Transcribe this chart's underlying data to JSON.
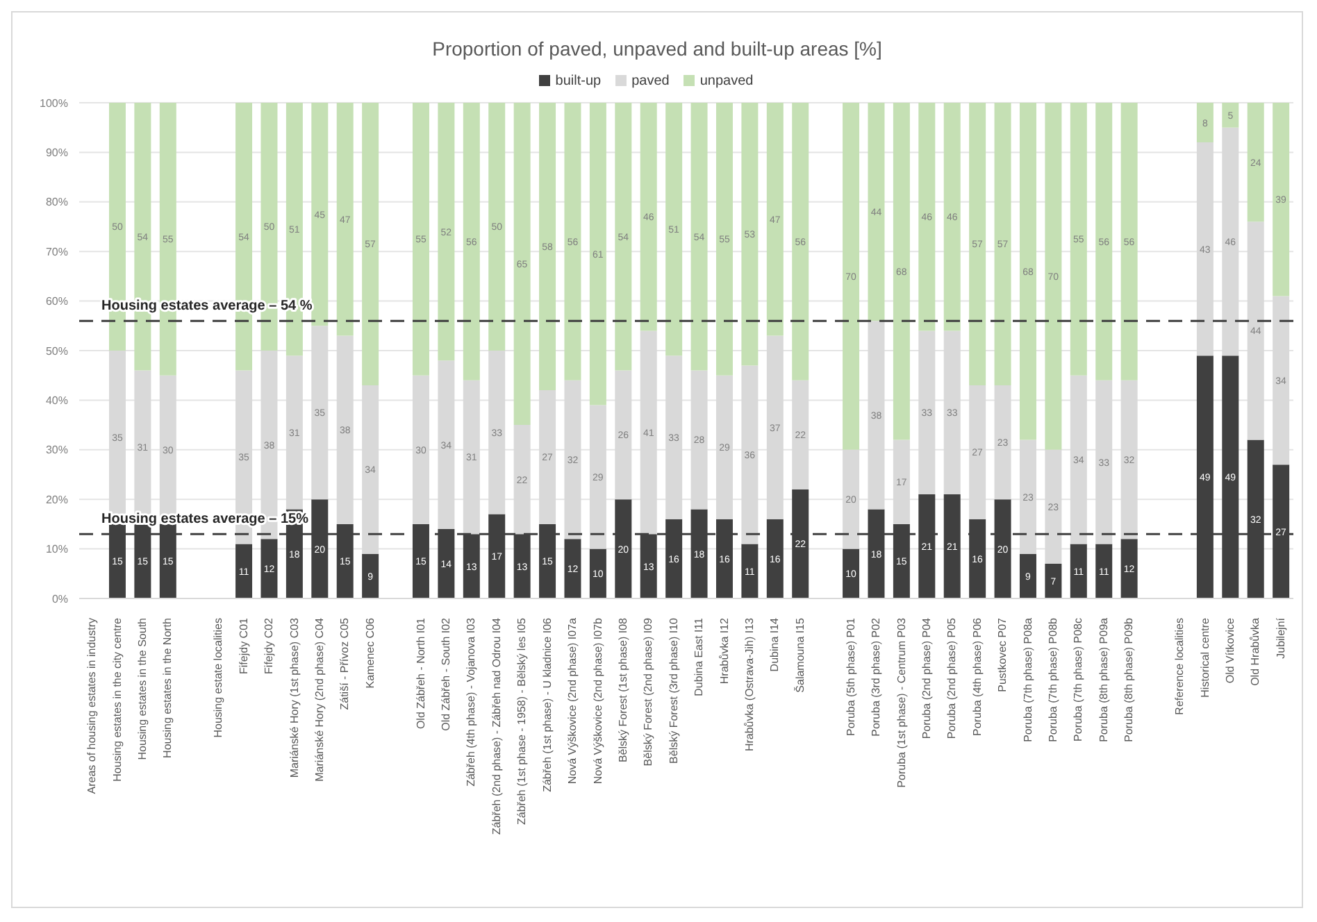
{
  "chart_data": {
    "type": "bar",
    "stacked": true,
    "title": "Proportion of paved, unpaved and built-up areas [%]",
    "categories": [
      "Areas of housing estates in industry",
      "Housing estates in the city centre",
      "Housing estates in the South",
      "Housing estates in the North",
      null,
      "Housing estate localities",
      "Fifejdy C01",
      "Fifejdy C02",
      "Mariánské Hory (1st phase) C03",
      "Mariánské Hory (2nd phase) C04",
      "Zátiší - Přívoz C05",
      "Kamenec C06",
      null,
      "Old Zábřeh - North I01",
      "Old Zábřeh - South I02",
      "Zábřeh (4th phase) - Vojanova I03",
      "Zábřeh (2nd phase) - Zábřeh nad Odrou I04",
      "Zábřeh (1st phase - 1958) - Bělský les I05",
      "Zábřeh (1st phase) - U kladnice I06",
      "Nová Výškovice (2nd phase) I07a",
      "Nová Výškovice (2nd phase) I07b",
      "Bělský Forest (1st phase) I08",
      "Bělský Forest (2nd phase) I09",
      "Bělský Forest (3rd phase) I10",
      "Dubina East I11",
      "Hrabůvka I12",
      "Hrabůvka (Ostrava-Jih) I13",
      "Dubina I14",
      "Šalamouna I15",
      null,
      "Poruba (5th phase) P01",
      "Poruba (3rd phase) P02",
      "Poruba (1st phase) - Centrum P03",
      "Poruba (2nd phase) P04",
      "Poruba (2nd phase) P05",
      "Poruba (4th phase) P06",
      "Pustkovec P07",
      "Poruba (7th phase) P08a",
      "Poruba (7th phase) P08b",
      "Poruba (7th phase) P08c",
      "Poruba (8th phase) P09a",
      "Poruba (8th phase) P09b",
      null,
      "Reference localities",
      "Historical centre",
      "Old Vítkovice",
      "Old Hrabůvka",
      "Jubilejní"
    ],
    "series": [
      {
        "name": "built-up",
        "color": "#404040",
        "values": [
          null,
          15,
          15,
          15,
          null,
          null,
          11,
          12,
          18,
          20,
          15,
          9,
          null,
          15,
          14,
          13,
          17,
          13,
          15,
          12,
          10,
          20,
          13,
          16,
          18,
          16,
          11,
          16,
          22,
          null,
          10,
          18,
          15,
          21,
          21,
          16,
          20,
          9,
          7,
          11,
          11,
          12,
          null,
          null,
          49,
          49,
          32,
          27
        ]
      },
      {
        "name": "paved",
        "color": "#d9d9d9",
        "values": [
          null,
          35,
          31,
          30,
          null,
          null,
          35,
          38,
          31,
          35,
          38,
          34,
          null,
          30,
          34,
          31,
          33,
          22,
          27,
          32,
          29,
          26,
          41,
          33,
          28,
          29,
          36,
          37,
          22,
          null,
          20,
          38,
          17,
          33,
          33,
          27,
          23,
          23,
          23,
          34,
          33,
          32,
          null,
          null,
          43,
          46,
          44,
          34
        ]
      },
      {
        "name": "unpaved",
        "color": "#c5e0b4",
        "values": [
          null,
          50,
          54,
          55,
          null,
          null,
          54,
          50,
          51,
          45,
          47,
          57,
          null,
          55,
          52,
          56,
          50,
          65,
          58,
          56,
          61,
          54,
          46,
          51,
          54,
          55,
          53,
          47,
          56,
          null,
          70,
          44,
          68,
          46,
          46,
          57,
          57,
          68,
          70,
          55,
          56,
          56,
          null,
          null,
          8,
          5,
          24,
          39
        ]
      }
    ],
    "ylim": [
      0,
      100
    ],
    "yticks": [
      {
        "value": 0,
        "label": "0%"
      },
      {
        "value": 10,
        "label": "10%"
      },
      {
        "value": 20,
        "label": "20%"
      },
      {
        "value": 30,
        "label": "30%"
      },
      {
        "value": 40,
        "label": "40%"
      },
      {
        "value": 50,
        "label": "50%"
      },
      {
        "value": 60,
        "label": "60%"
      },
      {
        "value": 70,
        "label": "70%"
      },
      {
        "value": 80,
        "label": "80%"
      },
      {
        "value": 90,
        "label": "90%"
      },
      {
        "value": 100,
        "label": "100%"
      }
    ],
    "grid": "y",
    "legend": "top",
    "data_labels": true,
    "ref_lines": [
      {
        "axis": "y",
        "value": 56,
        "label": "Housing estates average – 54 %",
        "color": "#404040",
        "line_style": "dashed"
      },
      {
        "axis": "y",
        "value": 13,
        "label": "Housing estates average – 15%",
        "color": "#404040",
        "line_style": "dashed"
      }
    ]
  }
}
